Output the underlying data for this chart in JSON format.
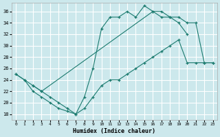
{
  "xlabel": "Humidex (Indice chaleur)",
  "bg_color": "#cce8ec",
  "grid_color": "#ffffff",
  "line_color": "#1a7a6e",
  "xlim": [
    -0.5,
    23.5
  ],
  "ylim": [
    17,
    37.5
  ],
  "yticks": [
    18,
    20,
    22,
    24,
    26,
    28,
    30,
    32,
    34,
    36
  ],
  "xticks": [
    0,
    1,
    2,
    3,
    4,
    5,
    6,
    7,
    8,
    9,
    10,
    11,
    12,
    13,
    14,
    15,
    16,
    17,
    18,
    19,
    20,
    21,
    22,
    23
  ],
  "line1_x": [
    0,
    1,
    2,
    3,
    4,
    5,
    6,
    7,
    8,
    9,
    10,
    11,
    12,
    13,
    14,
    15,
    16,
    17,
    18,
    19,
    20
  ],
  "line1_y": [
    25,
    24,
    22,
    21,
    20,
    19,
    18.5,
    18,
    21,
    26,
    33,
    35,
    35,
    36,
    35,
    37,
    36,
    35,
    35,
    34,
    32
  ],
  "line2_x": [
    0,
    1,
    2,
    3,
    16,
    17,
    18,
    19,
    20,
    21,
    22,
    23
  ],
  "line2_y": [
    25,
    24,
    23,
    22,
    36,
    36,
    35,
    35,
    34,
    34,
    27,
    27
  ],
  "line3_x": [
    2,
    3,
    4,
    5,
    6,
    7,
    8,
    9,
    10,
    11,
    12,
    13,
    14,
    15,
    16,
    17,
    18,
    19,
    20,
    21,
    22,
    23
  ],
  "line3_y": [
    23,
    22,
    21,
    20,
    19,
    18,
    19,
    21,
    23,
    24,
    24,
    25,
    26,
    27,
    28,
    29,
    30,
    31,
    27,
    27,
    27,
    27
  ]
}
